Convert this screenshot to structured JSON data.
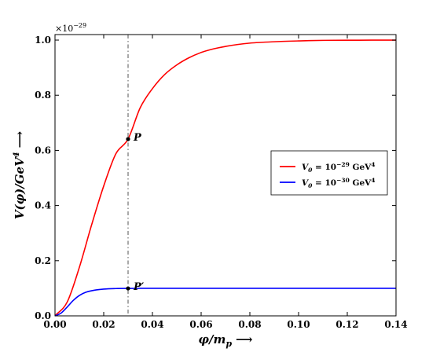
{
  "chart_data": {
    "type": "line",
    "xlabel": "φ/m",
    "xlabel_sub": "p",
    "xlabel_arrow": "⟶",
    "ylabel": "V(φ)/GeV",
    "ylabel_sup": "4",
    "ylabel_arrow": "⟶",
    "y_multiplier_base": "×10",
    "y_multiplier_exp": "−29",
    "xlim": [
      0.0,
      0.14
    ],
    "ylim": [
      0.0,
      1.02
    ],
    "xticks": [
      "0.00",
      "0.02",
      "0.04",
      "0.06",
      "0.08",
      "0.10",
      "0.12",
      "0.14"
    ],
    "yticks": [
      "0.0",
      "0.2",
      "0.4",
      "0.6",
      "0.8",
      "1.0"
    ],
    "grid": false,
    "legend_position": "center-right",
    "vline_x": 0.03,
    "series": [
      {
        "name": "V₀ = 10⁻²⁹ GeV⁴",
        "legend_base": "V",
        "legend_sub": "0",
        "legend_rest": " = 10",
        "legend_exp": "−29",
        "legend_unit": " GeV",
        "legend_unit_exp": "4",
        "color": "#ff0000",
        "x": [
          0.0,
          0.005,
          0.01,
          0.015,
          0.02,
          0.025,
          0.03,
          0.035,
          0.04,
          0.045,
          0.05,
          0.055,
          0.06,
          0.065,
          0.07,
          0.075,
          0.08,
          0.09,
          0.1,
          0.11,
          0.12,
          0.13,
          0.14
        ],
        "y": [
          0.0,
          0.05,
          0.176,
          0.329,
          0.471,
          0.588,
          0.641,
          0.755,
          0.824,
          0.875,
          0.91,
          0.936,
          0.955,
          0.968,
          0.977,
          0.984,
          0.989,
          0.994,
          0.997,
          0.999,
          0.9995,
          0.9998,
          1.0
        ]
      },
      {
        "name": "V₀ = 10⁻³⁰ GeV⁴",
        "legend_base": "V",
        "legend_sub": "0",
        "legend_rest": " = 10",
        "legend_exp": "−30",
        "legend_unit": " GeV",
        "legend_unit_exp": "4",
        "color": "#0000ff",
        "x": [
          0.0,
          0.0025,
          0.005,
          0.0075,
          0.01,
          0.0125,
          0.015,
          0.02,
          0.025,
          0.03,
          0.035,
          0.04,
          0.05,
          0.06,
          0.08,
          0.1,
          0.12,
          0.14
        ],
        "y": [
          0.0,
          0.01,
          0.032,
          0.056,
          0.074,
          0.085,
          0.091,
          0.097,
          0.099,
          0.0995,
          0.0998,
          0.0999,
          0.1,
          0.1,
          0.1,
          0.1,
          0.1,
          0.1
        ]
      }
    ],
    "points": [
      {
        "label": "P",
        "x": 0.03,
        "y": 0.641
      },
      {
        "label": "P′",
        "x": 0.03,
        "y": 0.0995
      }
    ]
  }
}
